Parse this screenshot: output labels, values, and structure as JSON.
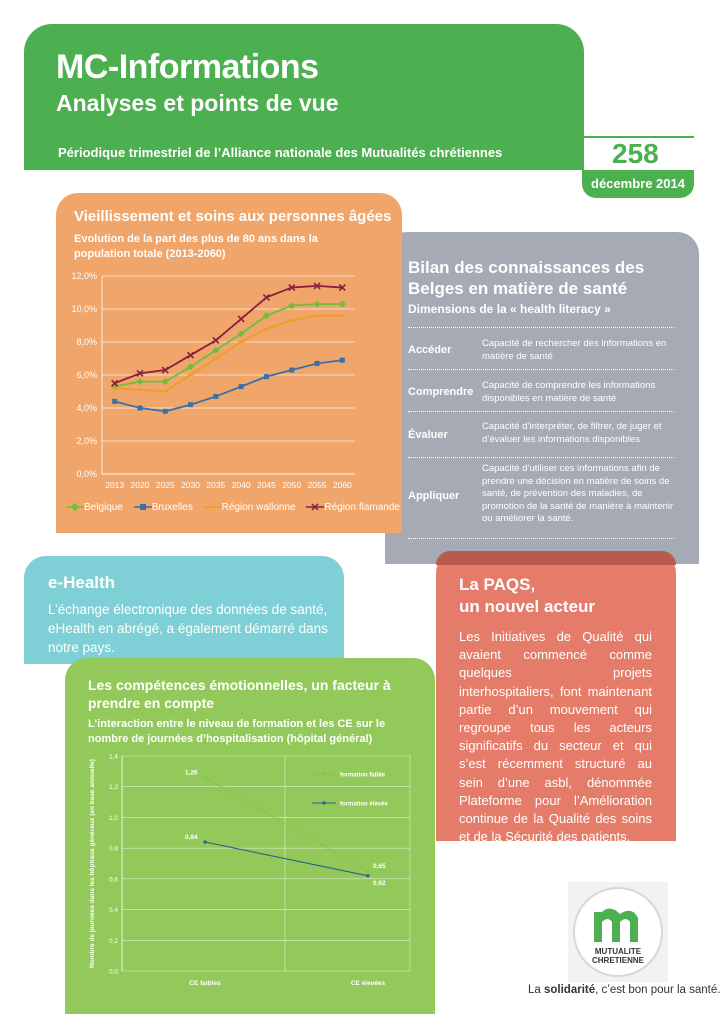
{
  "header": {
    "title": "MC-Informations",
    "subtitle": "Analyses et points de vue",
    "band_text": "Périodique trimestriel de l’Alliance nationale des Mutualités chrétiennes",
    "issue_number": "258",
    "date": "décembre 2014"
  },
  "aging": {
    "title": "Vieillissement et soins aux personnes âgées",
    "subtitle": "Evolution de la part des plus de 80 ans dans la population totale (2013-2060)"
  },
  "chart_data": [
    {
      "type": "line",
      "title": "",
      "x": [
        "2013",
        "2020",
        "2025",
        "2030",
        "2035",
        "2040",
        "2045",
        "2050",
        "2055",
        "2060"
      ],
      "yticks": [
        "0,0%",
        "2,0%",
        "4,0%",
        "6,0%",
        "8,0%",
        "10,0%",
        "12,0%"
      ],
      "ylim": [
        0,
        12
      ],
      "grid": true,
      "legend": "bottom",
      "series": [
        {
          "name": "Belgique",
          "color": "#6fbf3c",
          "marker": "diamond",
          "values": [
            5.3,
            5.6,
            5.6,
            6.5,
            7.5,
            8.5,
            9.6,
            10.2,
            10.3,
            10.3
          ]
        },
        {
          "name": "Bruxelles",
          "color": "#3b6fa8",
          "marker": "square",
          "values": [
            4.4,
            4.0,
            3.8,
            4.2,
            4.7,
            5.3,
            5.9,
            6.3,
            6.7,
            6.9
          ]
        },
        {
          "name": "Région wallonne",
          "color": "#f39b21",
          "marker": "dash",
          "values": [
            5.2,
            5.1,
            5.0,
            6.0,
            7.0,
            8.0,
            8.8,
            9.3,
            9.6,
            9.6
          ]
        },
        {
          "name": "Région flamande",
          "color": "#8b1e3f",
          "marker": "x",
          "values": [
            5.5,
            6.1,
            6.3,
            7.2,
            8.1,
            9.4,
            10.7,
            11.3,
            11.4,
            11.3
          ]
        }
      ]
    },
    {
      "type": "line",
      "title": "",
      "categories": [
        "CE faibles",
        "CE élevées"
      ],
      "ylabel": "Nombre de journées dans les hôpitaux généraux (en base annuelle)",
      "yticks": [
        "0,0",
        "0,2",
        "0,4",
        "0,6",
        "0,8",
        "1,0",
        "1,2",
        "1,4"
      ],
      "ylim": [
        0,
        1.4
      ],
      "series": [
        {
          "name": "formation faible",
          "color": "#8bc34a",
          "values": [
            1.26,
            0.65
          ],
          "labels": [
            "1,26",
            "0,65"
          ]
        },
        {
          "name": "formation élevée",
          "color": "#2e5e8c",
          "values": [
            0.84,
            0.62
          ],
          "labels": [
            "0,84",
            "0,62"
          ]
        }
      ]
    }
  ],
  "health_literacy": {
    "title": "Bilan des connaissances des Belges en matière de santé",
    "subtitle": "Dimensions de la « health literacy »",
    "rows": [
      {
        "key": "Accéder",
        "desc": "Capacité de rechercher des informations en matière de santé"
      },
      {
        "key": "Comprendre",
        "desc": "Capacité de comprendre les informations disponibles en matière de santé"
      },
      {
        "key": "Évaluer",
        "desc": "Capacité d’interpréter, de filtrer, de juger et d’évaluer les informations disponibles"
      },
      {
        "key": "Appliquer",
        "desc": "Capacité d’utiliser ces informations afin de prendre une décision en matière de soins de santé, de prévention des maladies, de promotion de la santé de manière à maintenir ou améliorer la santé."
      }
    ]
  },
  "ehealth": {
    "title": "e-Health",
    "text": "L’échange électronique des données de santé, eHealth en abrégé, a également démarré dans notre pays."
  },
  "paqs": {
    "title_line1": "La PAQS,",
    "title_line2": "un nouvel acteur",
    "text": "Les Initiatives de Qualité qui avaient commencé comme quelques projets interhospitaliers, font maintenant partie d’un mouvement qui regroupe tous les acteurs significatifs du secteur et qui s’est récemment structuré au sein d’une asbl, dénommée Plateforme pour l’Amélioration continue de la Qualité des soins et de la Sécurité des patients."
  },
  "emotional": {
    "title": "Les compétences émotionnelles, un facteur à prendre en compte",
    "subtitle": "L’interaction entre le niveau de formation et les CE sur le nombre de journées d’hospitalisation (hôpital général)"
  },
  "footer": {
    "logo_text_1": "MUTUALITE",
    "logo_text_2": "CHRETIENNE",
    "tagline_prefix": "La ",
    "tagline_bold": "solidarité",
    "tagline_suffix": ", c’est bon pour la santé."
  }
}
